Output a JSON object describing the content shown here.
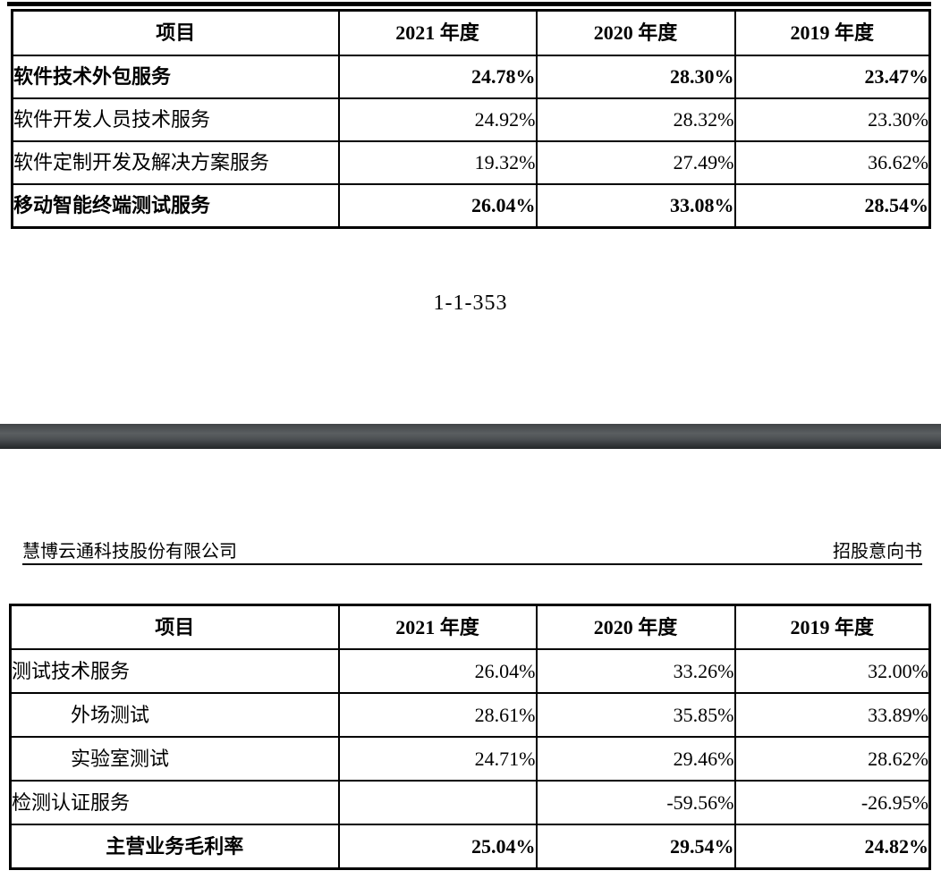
{
  "page": {
    "page_number": "1-1-353",
    "header2": {
      "company": "慧博云通科技股份有限公司",
      "doc_type": "招股意向书"
    }
  },
  "colors": {
    "text": "#000000",
    "table_border": "#000000",
    "divider_colors": [
      "#414547",
      "#5a5e61",
      "#4b4f52",
      "#232628"
    ]
  },
  "tables": [
    {
      "name": "gross-margin-by-business-table",
      "headers": [
        "项目",
        "2021 年度",
        "2020 年度",
        "2019 年度"
      ],
      "rows": [
        {
          "label": "软件技术外包服务",
          "values": [
            "24.78%",
            "28.30%",
            "23.47%"
          ],
          "bold": true,
          "indent": false,
          "label_align": "left"
        },
        {
          "label": "软件开发人员技术服务",
          "values": [
            "24.92%",
            "28.32%",
            "23.30%"
          ],
          "bold": false,
          "indent": false,
          "label_align": "left"
        },
        {
          "label": "软件定制开发及解决方案服务",
          "values": [
            "19.32%",
            "27.49%",
            "36.62%"
          ],
          "bold": false,
          "indent": false,
          "label_align": "left"
        },
        {
          "label": "移动智能终端测试服务",
          "values": [
            "26.04%",
            "33.08%",
            "28.54%"
          ],
          "bold": true,
          "indent": false,
          "label_align": "left"
        }
      ]
    },
    {
      "name": "gross-margin-testing-services-table",
      "headers": [
        "项目",
        "2021 年度",
        "2020 年度",
        "2019 年度"
      ],
      "rows": [
        {
          "label": "测试技术服务",
          "values": [
            "26.04%",
            "33.26%",
            "32.00%"
          ],
          "bold": false,
          "indent": false,
          "label_align": "left"
        },
        {
          "label": "外场测试",
          "values": [
            "28.61%",
            "35.85%",
            "33.89%"
          ],
          "bold": false,
          "indent": true,
          "label_align": "left"
        },
        {
          "label": "实验室测试",
          "values": [
            "24.71%",
            "29.46%",
            "28.62%"
          ],
          "bold": false,
          "indent": true,
          "label_align": "left"
        },
        {
          "label": "检测认证服务",
          "values": [
            "",
            "-59.56%",
            "-26.95%"
          ],
          "bold": false,
          "indent": false,
          "label_align": "left"
        },
        {
          "label": "主营业务毛利率",
          "values": [
            "25.04%",
            "29.54%",
            "24.82%"
          ],
          "bold": true,
          "indent": false,
          "label_align": "center"
        }
      ]
    }
  ],
  "table_layout": {
    "col_widths_1": [
      365,
      221,
      222,
      218
    ],
    "col_widths_2": [
      367,
      221,
      222,
      218
    ]
  }
}
